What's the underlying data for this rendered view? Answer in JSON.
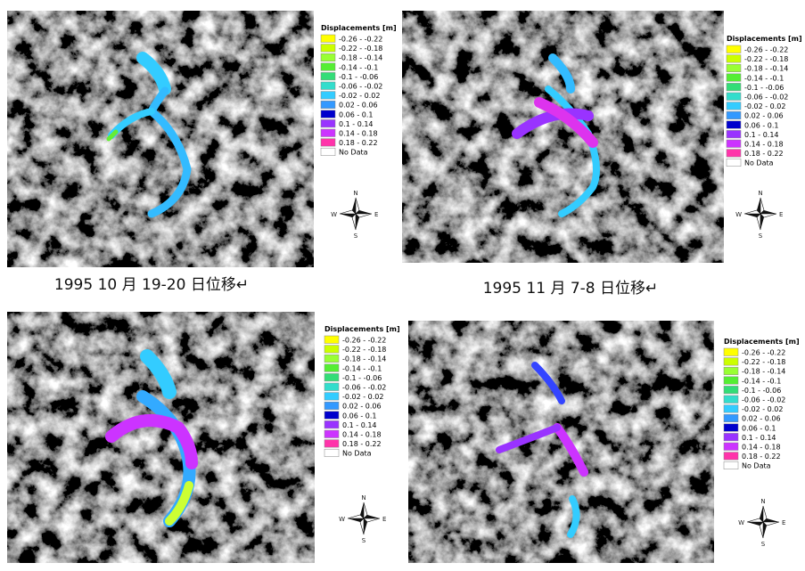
{
  "captions": [
    "1995 10 月 19-20 日位移↵",
    "1995 11 月 7-8 日位移↵"
  ],
  "panels": [
    {
      "legend": {
        "title": "Displacements  [m]",
        "items": [
          {
            "label": "-0.26 - -0.22",
            "color": "#ffff00"
          },
          {
            "label": "-0.22 - -0.18",
            "color": "#ccff00"
          },
          {
            "label": "-0.18 - -0.14",
            "color": "#99ff33"
          },
          {
            "label": "-0.14 - -0.1",
            "color": "#55ee33"
          },
          {
            "label": "-0.1 - -0.06",
            "color": "#33dd77"
          },
          {
            "label": "-0.06 - -0.02",
            "color": "#33ddcc"
          },
          {
            "label": "-0.02 - 0.02",
            "color": "#33ccff"
          },
          {
            "label": "0.02 - 0.06",
            "color": "#3399ff"
          },
          {
            "label": "0.06 - 0.1",
            "color": "#0000cc"
          },
          {
            "label": "0.1 - 0.14",
            "color": "#9933ff"
          },
          {
            "label": "0.14 - 0.18",
            "color": "#cc33ff"
          },
          {
            "label": "0.18 - 0.22",
            "color": "#ff33aa"
          },
          {
            "label": "No Data",
            "color": "#ffffff"
          }
        ]
      },
      "compass": {
        "n": "N",
        "s": "S",
        "w": "W",
        "e": "E"
      }
    },
    {
      "legend": {
        "title": "Displacements  [m]",
        "items": [
          {
            "label": "-0.26 - -0.22",
            "color": "#ffff00"
          },
          {
            "label": "-0.22 - -0.18",
            "color": "#ccff00"
          },
          {
            "label": "-0.18 - -0.14",
            "color": "#99ff33"
          },
          {
            "label": "-0.14 - -0.1",
            "color": "#55ee33"
          },
          {
            "label": "-0.1 - -0.06",
            "color": "#33dd77"
          },
          {
            "label": "-0.06 - -0.02",
            "color": "#33ddcc"
          },
          {
            "label": "-0.02 - 0.02",
            "color": "#33ccff"
          },
          {
            "label": "0.02 - 0.06",
            "color": "#3399ff"
          },
          {
            "label": "0.06 - 0.1",
            "color": "#0000cc"
          },
          {
            "label": "0.1 - 0.14",
            "color": "#9933ff"
          },
          {
            "label": "0.14 - 0.18",
            "color": "#cc33ff"
          },
          {
            "label": "0.18 - 0.22",
            "color": "#ff33aa"
          },
          {
            "label": "No Data",
            "color": "#ffffff"
          }
        ]
      },
      "compass": {
        "n": "N",
        "s": "S",
        "w": "W",
        "e": "E"
      }
    },
    {
      "legend": {
        "title": "Displacements  [m]",
        "items": [
          {
            "label": "-0.26 - -0.22",
            "color": "#ffff00"
          },
          {
            "label": "-0.22 - -0.18",
            "color": "#ccff00"
          },
          {
            "label": "-0.18 - -0.14",
            "color": "#99ff33"
          },
          {
            "label": "-0.14 - -0.1",
            "color": "#55ee33"
          },
          {
            "label": "-0.1 - -0.06",
            "color": "#33dd77"
          },
          {
            "label": "-0.06 - -0.02",
            "color": "#33ddcc"
          },
          {
            "label": "-0.02 - 0.02",
            "color": "#33ccff"
          },
          {
            "label": "0.02 - 0.06",
            "color": "#3399ff"
          },
          {
            "label": "0.06 - 0.1",
            "color": "#0000cc"
          },
          {
            "label": "0.1 - 0.14",
            "color": "#9933ff"
          },
          {
            "label": "0.14 - 0.18",
            "color": "#cc33ff"
          },
          {
            "label": "0.18 - 0.22",
            "color": "#ff33aa"
          },
          {
            "label": "No Data",
            "color": "#ffffff"
          }
        ]
      },
      "compass": {
        "n": "N",
        "s": "S",
        "w": "W",
        "e": "E"
      }
    },
    {
      "legend": {
        "title": "Displacements  [m]",
        "items": [
          {
            "label": "-0.26 - -0.22",
            "color": "#ffff00"
          },
          {
            "label": "-0.22 - -0.18",
            "color": "#ccff00"
          },
          {
            "label": "-0.18 - -0.14",
            "color": "#99ff33"
          },
          {
            "label": "-0.14 - -0.1",
            "color": "#55ee33"
          },
          {
            "label": "-0.1 - -0.06",
            "color": "#33dd77"
          },
          {
            "label": "-0.06 - -0.02",
            "color": "#33ddcc"
          },
          {
            "label": "-0.02 - 0.02",
            "color": "#33ccff"
          },
          {
            "label": "0.02 - 0.06",
            "color": "#3399ff"
          },
          {
            "label": "0.06 - 0.1",
            "color": "#0000cc"
          },
          {
            "label": "0.1 - 0.14",
            "color": "#9933ff"
          },
          {
            "label": "0.14 - 0.18",
            "color": "#cc33ff"
          },
          {
            "label": "0.18 - 0.22",
            "color": "#ff33aa"
          },
          {
            "label": "No Data",
            "color": "#ffffff"
          }
        ]
      },
      "compass": {
        "n": "N",
        "s": "S",
        "w": "W",
        "e": "E"
      }
    }
  ]
}
